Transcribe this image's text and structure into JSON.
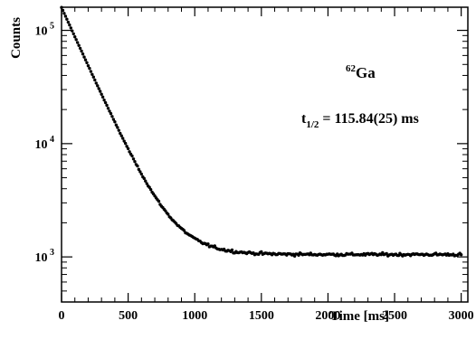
{
  "chart_data": {
    "type": "scatter",
    "y_scale": "log",
    "xlim": [
      0,
      3050
    ],
    "ylim": [
      400,
      160000
    ],
    "x_ticks": [
      0,
      500,
      1000,
      1500,
      2000,
      2500,
      3000
    ],
    "x_tick_labels": [
      "0",
      "500",
      "1000",
      "1500",
      "2000",
      "2500",
      "3000"
    ],
    "y_ticks": [
      1000,
      10000,
      100000
    ],
    "y_tick_labels": [
      {
        "base": "10",
        "exp": "3"
      },
      {
        "base": "10",
        "exp": "4"
      },
      {
        "base": "10",
        "exp": "5"
      }
    ],
    "xlabel": "Time [ms]",
    "ylabel": "Counts",
    "grid": false,
    "annotations": {
      "isotope": {
        "mass": "62",
        "symbol": "Ga"
      },
      "halflife": {
        "t": "t",
        "sub": "1/2",
        "text": " = 115.84(25) ms"
      }
    },
    "series": [
      {
        "marker": "dot",
        "color": "#000000",
        "model": {
          "a0": 158000,
          "halflife_ms": 115.84,
          "background": 1050,
          "t_min": 0,
          "t_max": 3000,
          "step_ms": 10
        },
        "points_note_free": true
      }
    ]
  }
}
